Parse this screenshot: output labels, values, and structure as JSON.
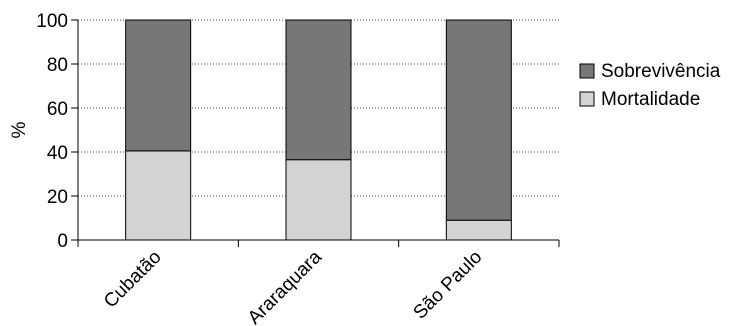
{
  "chart_data": {
    "type": "bar",
    "stacked": true,
    "normalized_to": 100,
    "categories": [
      "Cubatão",
      "Araraquara",
      "São Paulo"
    ],
    "series": [
      {
        "name": "Mortalidade",
        "values": [
          40.5,
          36.5,
          9
        ],
        "color": "#d3d3d3"
      },
      {
        "name": "Sobrevivência",
        "values": [
          59.5,
          63.5,
          91
        ],
        "color": "#777777"
      }
    ],
    "xlabel": "",
    "ylabel": "%",
    "ylim": [
      0,
      100
    ],
    "yticks": [
      "0",
      "20",
      "40",
      "60",
      "80",
      "100"
    ],
    "grid": "horizontal dotted",
    "legend_position": "right",
    "legend_order": [
      "Sobrevivência",
      "Mortalidade"
    ]
  }
}
